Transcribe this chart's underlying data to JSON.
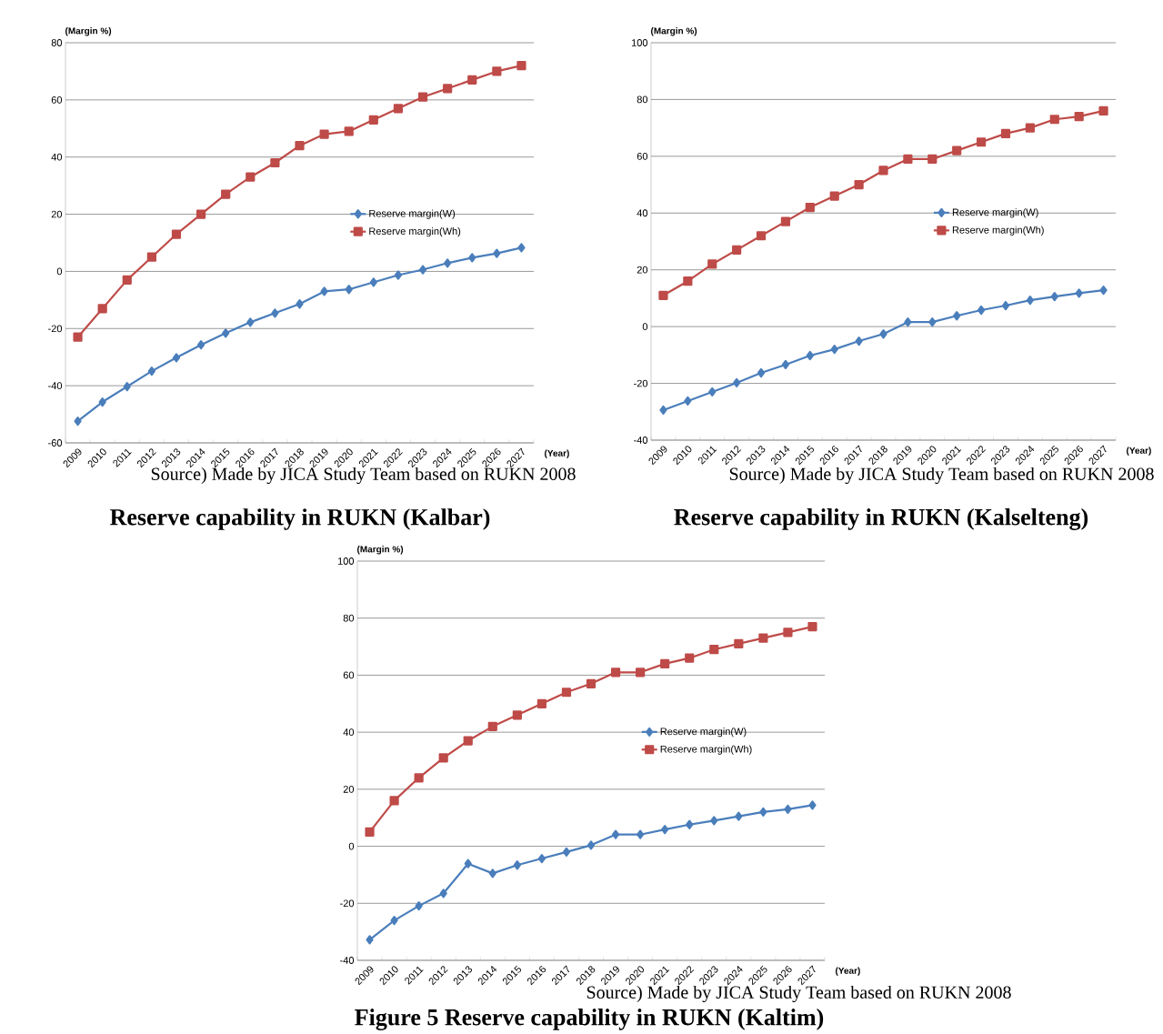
{
  "chart_data": [
    {
      "type": "line",
      "title": "Reserve capability in RUKN (Kalbar)",
      "xlabel": "(Year)",
      "ylabel": "(Margin %)",
      "categories": [
        "2009",
        "2010",
        "2011",
        "2012",
        "2013",
        "2014",
        "2015",
        "2016",
        "2017",
        "2018",
        "2019",
        "2020",
        "2021",
        "2022",
        "2023",
        "2024",
        "2025",
        "2026",
        "2027"
      ],
      "ylim": [
        -60,
        80
      ],
      "yticks": [
        -60,
        -40,
        -20,
        0,
        20,
        40,
        60,
        80
      ],
      "grid": "y",
      "legend": "right",
      "annotations": [
        "Source) Made by JICA Study Team based on RUKN 2008"
      ],
      "series": [
        {
          "name": "Reserve margin(W)",
          "color": "#4a7ebb",
          "marker": "diamond",
          "values": [
            -52.4,
            -45.7,
            -40.3,
            -34.9,
            -30.2,
            -25.7,
            -21.6,
            -17.8,
            -14.6,
            -11.4,
            -7,
            -6.3,
            -3.8,
            -1.3,
            0.6,
            2.9,
            4.8,
            6.3,
            8.3
          ]
        },
        {
          "name": "Reserve margin(Wh)",
          "color": "#be4b48",
          "marker": "square",
          "values": [
            -23,
            -13,
            -3,
            5,
            13,
            20,
            27,
            33,
            38,
            44,
            48,
            49,
            53,
            57,
            61,
            64,
            67,
            70,
            72
          ]
        }
      ]
    },
    {
      "type": "line",
      "title": "Reserve capability in RUKN (Kalselteng)",
      "xlabel": "(Year)",
      "ylabel": "(Margin %)",
      "categories": [
        "2009",
        "2010",
        "2011",
        "2012",
        "2013",
        "2014",
        "2015",
        "2016",
        "2017",
        "2018",
        "2019",
        "2020",
        "2021",
        "2022",
        "2023",
        "2024",
        "2025",
        "2026",
        "2027"
      ],
      "ylim": [
        -40,
        100
      ],
      "yticks": [
        -40,
        -20,
        0,
        20,
        40,
        60,
        80,
        100
      ],
      "grid": "y",
      "legend": "right",
      "annotations": [
        "Source) Made by JICA Study Team based on RUKN 2008"
      ],
      "series": [
        {
          "name": "Reserve margin(W)",
          "color": "#4a7ebb",
          "marker": "diamond",
          "values": [
            -29.4,
            -26.2,
            -23,
            -19.8,
            -16.3,
            -13.4,
            -10.2,
            -8,
            -5.1,
            -2.6,
            1.6,
            1.6,
            3.8,
            5.8,
            7.4,
            9.3,
            10.6,
            11.8,
            12.8
          ]
        },
        {
          "name": "Reserve margin(Wh)",
          "color": "#be4b48",
          "marker": "square",
          "values": [
            11,
            16,
            22,
            27,
            32,
            37,
            42,
            46,
            50,
            55,
            59,
            59,
            62,
            65,
            68,
            70,
            73,
            74,
            76
          ]
        }
      ]
    },
    {
      "type": "line",
      "title": "Figure 5 Reserve capability in RUKN (Kaltim)",
      "xlabel": "(Year)",
      "ylabel": "(Margin %)",
      "categories": [
        "2009",
        "2010",
        "2011",
        "2012",
        "2013",
        "2014",
        "2015",
        "2016",
        "2017",
        "2018",
        "2019",
        "2020",
        "2021",
        "2022",
        "2023",
        "2024",
        "2025",
        "2026",
        "2027"
      ],
      "ylim": [
        -40,
        100
      ],
      "yticks": [
        -40,
        -20,
        0,
        20,
        40,
        60,
        80,
        100
      ],
      "grid": "y",
      "legend": "right",
      "annotations": [
        "Source) Made by JICA Study Team based on RUKN 2008"
      ],
      "series": [
        {
          "name": "Reserve margin(W)",
          "color": "#4a7ebb",
          "marker": "diamond",
          "values": [
            -32.8,
            -26,
            -20.9,
            -16.5,
            -6.1,
            -9.5,
            -6.6,
            -4.3,
            -2,
            0.4,
            4.1,
            4.1,
            5.9,
            7.6,
            9,
            10.5,
            12,
            13,
            14.4
          ]
        },
        {
          "name": "Reserve margin(Wh)",
          "color": "#be4b48",
          "marker": "square",
          "values": [
            5,
            16,
            24,
            31,
            37,
            42,
            46,
            50,
            54,
            57,
            61,
            61,
            64,
            66,
            69,
            71,
            73,
            75,
            77
          ]
        }
      ]
    }
  ]
}
